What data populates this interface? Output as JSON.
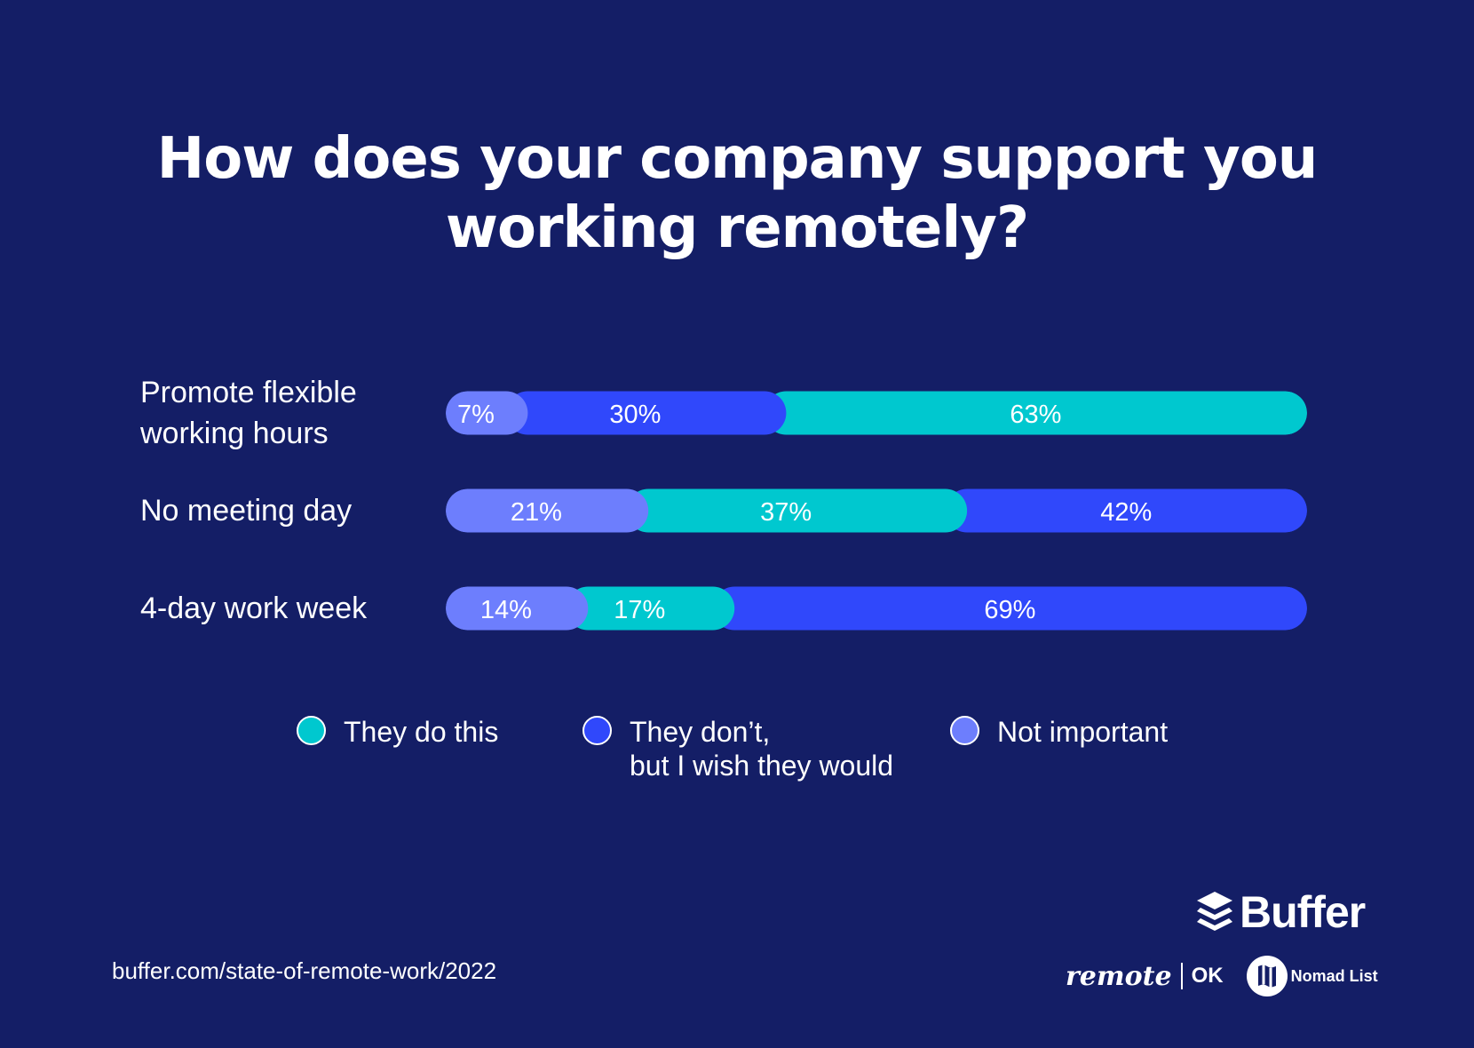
{
  "title_lines": [
    "How does your company support you",
    "working remotely?"
  ],
  "colors": {
    "background": "#141e66",
    "do": "#00c8cf",
    "dont": "#3048fb",
    "not_important": "#6d7efd"
  },
  "chart_data": {
    "type": "bar",
    "orientation": "horizontal",
    "stacked": true,
    "categories": [
      "Promote flexible\nworking hours",
      "No meeting day",
      "4-day work week"
    ],
    "series": [
      {
        "name": "They do this",
        "key": "do",
        "values": [
          63,
          37,
          17
        ]
      },
      {
        "name": "They don’t,\nbut I wish they would",
        "key": "dont",
        "values": [
          30,
          42,
          69
        ]
      },
      {
        "name": "Not important",
        "key": "not_important",
        "values": [
          7,
          21,
          14
        ]
      }
    ],
    "segment_order": [
      [
        "not_important",
        "dont",
        "do"
      ],
      [
        "not_important",
        "do",
        "dont"
      ],
      [
        "not_important",
        "do",
        "dont"
      ]
    ],
    "data_labels": [
      [
        "7%",
        "30%",
        "63%"
      ],
      [
        "21%",
        "37%",
        "42%"
      ],
      [
        "14%",
        "17%",
        "69%"
      ]
    ],
    "legend_position": "bottom",
    "xlim": [
      0,
      100
    ],
    "grid": false
  },
  "legend": {
    "items": [
      {
        "label": "They do this",
        "key": "do"
      },
      {
        "label": "They don’t,\nbut I wish they would",
        "key": "dont"
      },
      {
        "label": "Not important",
        "key": "not_important"
      }
    ]
  },
  "footer": {
    "source": "buffer.com/state-of-remote-work/2022",
    "buffer_logo": "Buffer",
    "remote_ok_remote": "remote",
    "remote_ok_ok": "OK",
    "nomad_list": "Nomad List",
    "icons": {
      "buffer": "stack-layers-icon",
      "nomad": "map-badge-icon"
    }
  }
}
